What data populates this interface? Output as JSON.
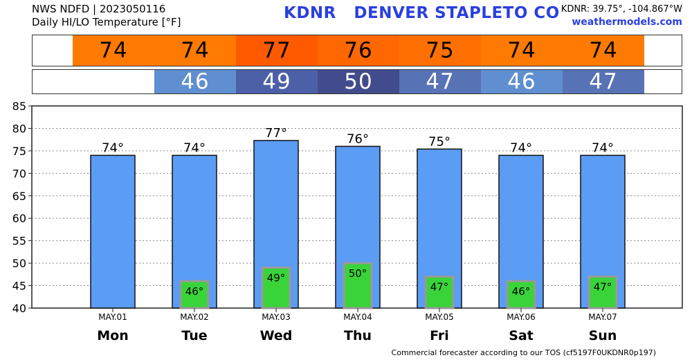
{
  "header": {
    "line1": "NWS NDFD | 2023050116",
    "line2": "Daily HI/LO Temperature [°F]",
    "title": "KDNR   DENVER STAPLETO CO",
    "coords": "KDNR: 39.75°, -104.867°W",
    "site": "weathermodels.com"
  },
  "footer": "Commercial forecaster according to our TOS (cf5197F0UKDNR0p197)",
  "colors": {
    "hi_bar": "#5b9cf5",
    "lo_bar": "#39d439",
    "lo_bar_border": "#999999",
    "hi_cells": [
      "#ff7a00",
      "#ff7a00",
      "#ff5a00",
      "#ff6800",
      "#ff7000",
      "#ff7a00",
      "#ff7a00"
    ],
    "lo_cells": [
      "#5f8fd0",
      "#4c60a8",
      "#424c8c",
      "#5872b6",
      "#5f8fd0",
      "#5872b6"
    ]
  },
  "hi_strip": [
    "74",
    "74",
    "77",
    "76",
    "75",
    "74",
    "74"
  ],
  "lo_strip": [
    "46",
    "49",
    "50",
    "47",
    "46",
    "47"
  ],
  "chart_data": {
    "type": "bar",
    "categories": [
      "MAY.01",
      "MAY.02",
      "MAY.03",
      "MAY.04",
      "MAY.05",
      "MAY.06",
      "MAY.07"
    ],
    "days": [
      "Mon",
      "Tue",
      "Wed",
      "Thu",
      "Fri",
      "Sat",
      "Sun"
    ],
    "series": [
      {
        "values": [
          74,
          74,
          77.3,
          76,
          75.4,
          74,
          74
        ],
        "labels": [
          "74°",
          "74°",
          "77°",
          "76°",
          "75°",
          "74°",
          "74°"
        ]
      },
      {
        "values": [
          null,
          46,
          49,
          50,
          47,
          46,
          47
        ],
        "labels": [
          "",
          "46°",
          "49°",
          "50°",
          "47°",
          "46°",
          "47°"
        ]
      }
    ],
    "ylim": [
      40,
      85
    ],
    "yticks": [
      40,
      45,
      50,
      55,
      60,
      65,
      70,
      75,
      80,
      85
    ],
    "grid": true
  }
}
